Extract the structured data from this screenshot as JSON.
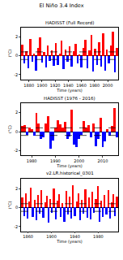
{
  "suptitle": "El Niño 3.4 Index",
  "chart_data": [
    {
      "type": "bar",
      "title": "HADISST (Full Record)",
      "x_label": "Time (years)",
      "y_label": "(°C)",
      "x": [
        1870,
        1873,
        1876,
        1879,
        1882,
        1885,
        1888,
        1891,
        1894,
        1897,
        1900,
        1903,
        1906,
        1909,
        1912,
        1915,
        1918,
        1921,
        1924,
        1927,
        1930,
        1933,
        1936,
        1939,
        1942,
        1945,
        1948,
        1951,
        1954,
        1957,
        1960,
        1963,
        1966,
        1969,
        1972,
        1975,
        1978,
        1981,
        1984,
        1987,
        1990,
        1993,
        1996,
        1999,
        2002,
        2005,
        2008,
        2011,
        2014
      ],
      "values": [
        1.2,
        -0.8,
        0.5,
        -1.3,
        1.8,
        -0.6,
        0.3,
        -1.5,
        0.9,
        2.0,
        -0.7,
        0.4,
        -1.2,
        1.1,
        -0.5,
        0.6,
        -1.0,
        1.4,
        -0.9,
        0.3,
        1.6,
        -1.4,
        0.7,
        -0.6,
        1.0,
        -1.1,
        0.5,
        1.3,
        -0.8,
        0.2,
        -1.2,
        0.9,
        1.7,
        -1.3,
        0.6,
        2.2,
        -1.6,
        0.8,
        -0.9,
        1.5,
        -1.1,
        2.4,
        -1.5,
        0.7,
        -0.8,
        1.1,
        2.6,
        -1.7,
        0.9
      ],
      "colors": [
        "red",
        "blue",
        "red",
        "blue",
        "red",
        "blue",
        "red",
        "blue",
        "red",
        "red",
        "blue",
        "red",
        "blue",
        "red",
        "blue",
        "red",
        "blue",
        "red",
        "blue",
        "red",
        "red",
        "blue",
        "red",
        "blue",
        "red",
        "blue",
        "red",
        "red",
        "blue",
        "red",
        "blue",
        "red",
        "red",
        "blue",
        "red",
        "red",
        "blue",
        "red",
        "blue",
        "red",
        "blue",
        "red",
        "blue",
        "red",
        "blue",
        "red",
        "red",
        "blue",
        "red"
      ],
      "threshold_lines": [
        -0.4,
        0.4
      ],
      "xlim": [
        1868,
        2016
      ],
      "xticks": [
        1880,
        1900,
        1920,
        1940,
        1960,
        1980,
        2000
      ],
      "ylim": [
        -2.5,
        3
      ],
      "yticks": [
        -2,
        0,
        2
      ]
    },
    {
      "type": "bar",
      "title": "HADISST (1976 - 2016)",
      "x_label": "Time (years)",
      "y_label": "(°C)",
      "x": [
        1976,
        1977,
        1978,
        1979,
        1980,
        1981,
        1982,
        1983,
        1984,
        1985,
        1986,
        1987,
        1988,
        1989,
        1990,
        1991,
        1992,
        1993,
        1994,
        1995,
        1996,
        1997,
        1998,
        1999,
        2000,
        2001,
        2002,
        2003,
        2004,
        2005,
        2006,
        2007,
        2008,
        2009,
        2010,
        2011,
        2012,
        2013,
        2014,
        2015,
        2016
      ],
      "values": [
        0.6,
        0.7,
        -0.3,
        0.4,
        0.3,
        -0.4,
        2.0,
        0.9,
        -0.8,
        -0.6,
        0.9,
        1.6,
        -1.8,
        -0.9,
        0.4,
        1.2,
        0.8,
        0.4,
        1.0,
        -0.8,
        -0.5,
        2.3,
        -1.4,
        -1.6,
        -0.8,
        -0.3,
        1.1,
        0.4,
        0.7,
        -0.6,
        0.9,
        -1.5,
        -0.8,
        1.5,
        -1.6,
        -1.0,
        0.3,
        -0.4,
        0.6,
        2.5,
        -0.6
      ],
      "colors": [
        "red",
        "red",
        "blue",
        "red",
        "red",
        "blue",
        "red",
        "red",
        "blue",
        "blue",
        "red",
        "red",
        "blue",
        "blue",
        "red",
        "red",
        "red",
        "red",
        "red",
        "blue",
        "blue",
        "red",
        "blue",
        "blue",
        "blue",
        "blue",
        "red",
        "red",
        "red",
        "blue",
        "red",
        "blue",
        "blue",
        "red",
        "blue",
        "blue",
        "red",
        "blue",
        "red",
        "red",
        "blue"
      ],
      "threshold_lines": [
        -0.4,
        0.4
      ],
      "xlim": [
        1975.5,
        2016.5
      ],
      "xticks": [
        1980,
        1990,
        2000,
        2010
      ],
      "ylim": [
        -2.5,
        3
      ],
      "yticks": [
        -2,
        0,
        2
      ]
    },
    {
      "type": "bar",
      "title": "v2.LR.historical_0301",
      "x_label": "Time (years)",
      "y_label": "(°C)",
      "x": [
        1850,
        1853,
        1856,
        1859,
        1862,
        1865,
        1868,
        1871,
        1874,
        1877,
        1880,
        1883,
        1886,
        1889,
        1892,
        1895,
        1898,
        1901,
        1904,
        1907,
        1910,
        1913,
        1916,
        1919,
        1922,
        1925,
        1928,
        1931,
        1934,
        1937,
        1940,
        1943,
        1946,
        1949,
        1952,
        1955,
        1958,
        1961,
        1964,
        1967,
        1970,
        1973,
        1976,
        1979,
        1982,
        1985,
        1988,
        1991,
        1994,
        1997,
        2000,
        2003,
        2006,
        2009,
        2012
      ],
      "values": [
        1.0,
        -0.9,
        1.5,
        -1.2,
        0.6,
        2.1,
        -1.0,
        0.8,
        -1.4,
        1.3,
        -0.7,
        1.8,
        -1.1,
        0.5,
        1.2,
        -1.6,
        0.9,
        -0.6,
        2.0,
        -1.3,
        0.7,
        1.4,
        -1.0,
        0.4,
        -1.5,
        1.7,
        -0.8,
        1.1,
        -1.2,
        2.3,
        -0.9,
        0.6,
        1.5,
        -1.4,
        0.8,
        -0.7,
        1.9,
        -1.1,
        1.0,
        -1.3,
        1.6,
        -0.6,
        0.9,
        2.2,
        -1.5,
        0.7,
        -1.0,
        1.3,
        -0.8,
        1.8,
        -1.2,
        0.5,
        1.4,
        -0.9,
        1.1
      ],
      "colors": [
        "red",
        "blue",
        "red",
        "blue",
        "red",
        "red",
        "blue",
        "red",
        "blue",
        "red",
        "blue",
        "red",
        "blue",
        "red",
        "red",
        "blue",
        "red",
        "blue",
        "red",
        "blue",
        "red",
        "red",
        "blue",
        "red",
        "blue",
        "red",
        "blue",
        "red",
        "blue",
        "red",
        "blue",
        "red",
        "red",
        "blue",
        "red",
        "blue",
        "red",
        "blue",
        "red",
        "blue",
        "red",
        "blue",
        "red",
        "red",
        "blue",
        "red",
        "blue",
        "red",
        "blue",
        "red",
        "blue",
        "red",
        "red",
        "blue",
        "red"
      ],
      "threshold_lines": [
        -0.4,
        0.4
      ],
      "xlim": [
        1848,
        2014
      ],
      "xticks": [
        1860,
        1900,
        1940,
        1980
      ],
      "ylim": [
        -2.5,
        3
      ],
      "yticks": [
        -2,
        0,
        2
      ]
    }
  ]
}
